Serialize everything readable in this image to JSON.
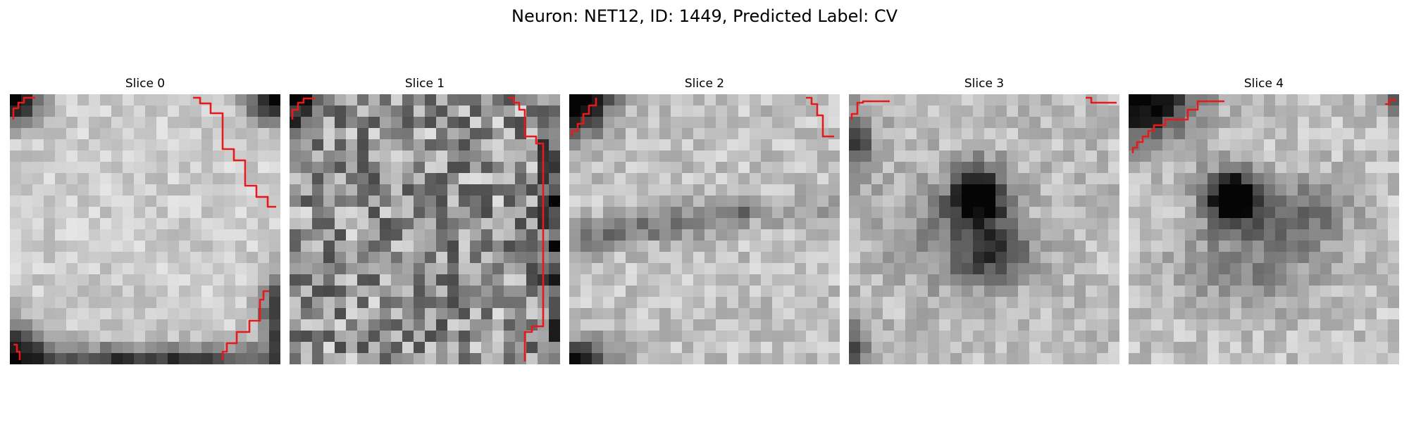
{
  "figure": {
    "title": "Neuron: NET12, ID: 1449, Predicted Label: CV"
  },
  "slices": [
    {
      "title": "Slice 0",
      "pattern": "bright-disc",
      "seed": 11,
      "contour_color": "#e8191a"
    },
    {
      "title": "Slice 1",
      "pattern": "noisy",
      "seed": 23,
      "contour_color": "#e8191a"
    },
    {
      "title": "Slice 2",
      "pattern": "band",
      "seed": 37,
      "contour_color": "#e8191a"
    },
    {
      "title": "Slice 3",
      "pattern": "dark-blob",
      "seed": 51,
      "contour_color": "#e8191a"
    },
    {
      "title": "Slice 4",
      "pattern": "dark-blob-wide",
      "seed": 67,
      "contour_color": "#e8191a"
    }
  ]
}
